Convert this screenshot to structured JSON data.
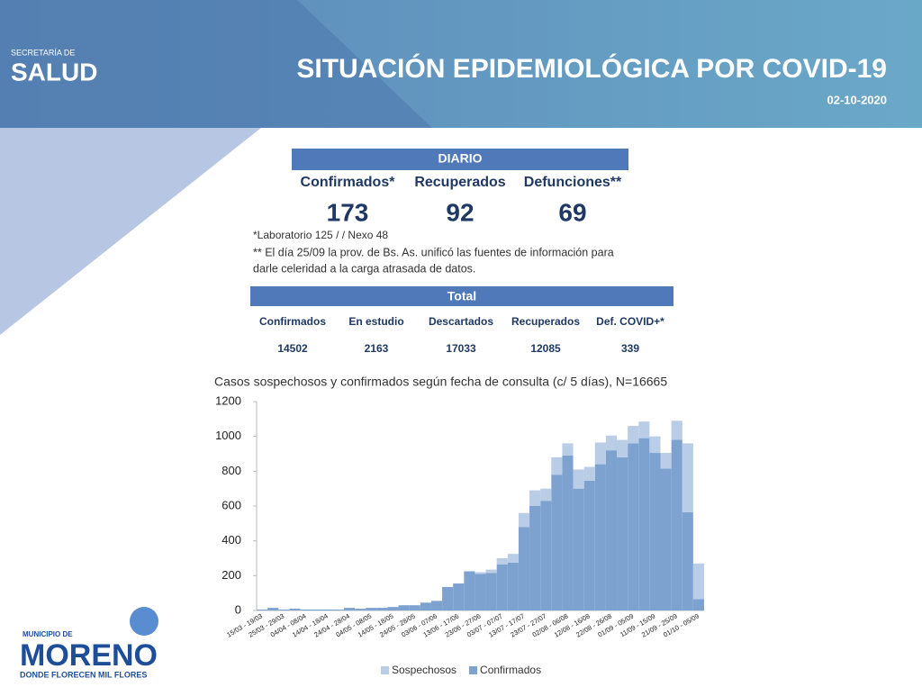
{
  "header": {
    "brand_small": "SECRETARÍA DE",
    "brand": "SALUD",
    "title": "SITUACIÓN EPIDEMIOLÓGICA POR COVID-19",
    "date": "02-10-2020"
  },
  "daily": {
    "title": "DIARIO",
    "headers": [
      "Confirmados*",
      "Recuperados",
      "Defunciones**"
    ],
    "values": [
      173,
      92,
      69
    ],
    "notes": [
      "*Laboratorio 125 / / Nexo 48",
      "** El día 25/09 la prov. de Bs. As. unificó las fuentes de información para",
      "darle celeridad a la carga atrasada de datos."
    ]
  },
  "total": {
    "title": "Total",
    "headers": [
      "Confirmados",
      "En estudio",
      "Descartados",
      "Recuperados",
      "Def. COVID+*"
    ],
    "values": [
      14502,
      2163,
      17033,
      12085,
      339
    ]
  },
  "footer": {
    "municipio": "MUNICIPIO DE",
    "name": "MORENO",
    "slogan": "DONDE FLORECEN MIL FLORES"
  },
  "chart_data": {
    "type": "bar",
    "stacked": true,
    "title": "Casos sospechosos y confirmados según fecha de consulta (c/ 5 días), N=16665",
    "categories": [
      "15/03 - 19/03",
      null,
      "25/03 - 29/03",
      null,
      "04/04 - 08/04",
      null,
      "14/04 - 18/04",
      null,
      "24/04 - 28/04",
      null,
      "04/05 - 08/05",
      null,
      "14/05 - 18/05",
      null,
      "24/05 - 28/05",
      null,
      "03/06 - 07/06",
      null,
      "13/06 - 17/06",
      null,
      "23/06 - 27/06",
      null,
      "03/07 - 07/07",
      null,
      "13/07 - 17/07",
      null,
      "23/07 - 27/07",
      null,
      "02/08 - 06/08",
      null,
      "12/08 - 16/08",
      null,
      "22/08 - 26/08",
      null,
      "01/09 - 05/09",
      null,
      "11/09 - 15/09",
      null,
      "21/09 - 25/09",
      null,
      "01/10 - 05/09"
    ],
    "series": [
      {
        "name": "Sospechosos",
        "color": "#b9cde6",
        "values": [
          0,
          0,
          0,
          0,
          0,
          0,
          0,
          0,
          0,
          0,
          0,
          0,
          0,
          0,
          0,
          0,
          0,
          0,
          0,
          0,
          10,
          20,
          35,
          50,
          80,
          90,
          70,
          100,
          70,
          110,
          80,
          125,
          85,
          100,
          100,
          95,
          95,
          90,
          110,
          395,
          205
        ]
      },
      {
        "name": "Confirmados",
        "color": "#7ea2d0",
        "values": [
          5,
          15,
          5,
          10,
          5,
          5,
          5,
          5,
          15,
          10,
          15,
          15,
          20,
          30,
          30,
          45,
          55,
          135,
          155,
          225,
          210,
          215,
          265,
          275,
          480,
          600,
          630,
          780,
          890,
          700,
          745,
          840,
          920,
          880,
          960,
          990,
          905,
          815,
          980,
          565,
          65
        ]
      }
    ],
    "ylim": [
      0,
      1200
    ],
    "yticks": [
      0,
      200,
      400,
      600,
      800,
      1000,
      1200
    ],
    "legend": "bottom"
  }
}
